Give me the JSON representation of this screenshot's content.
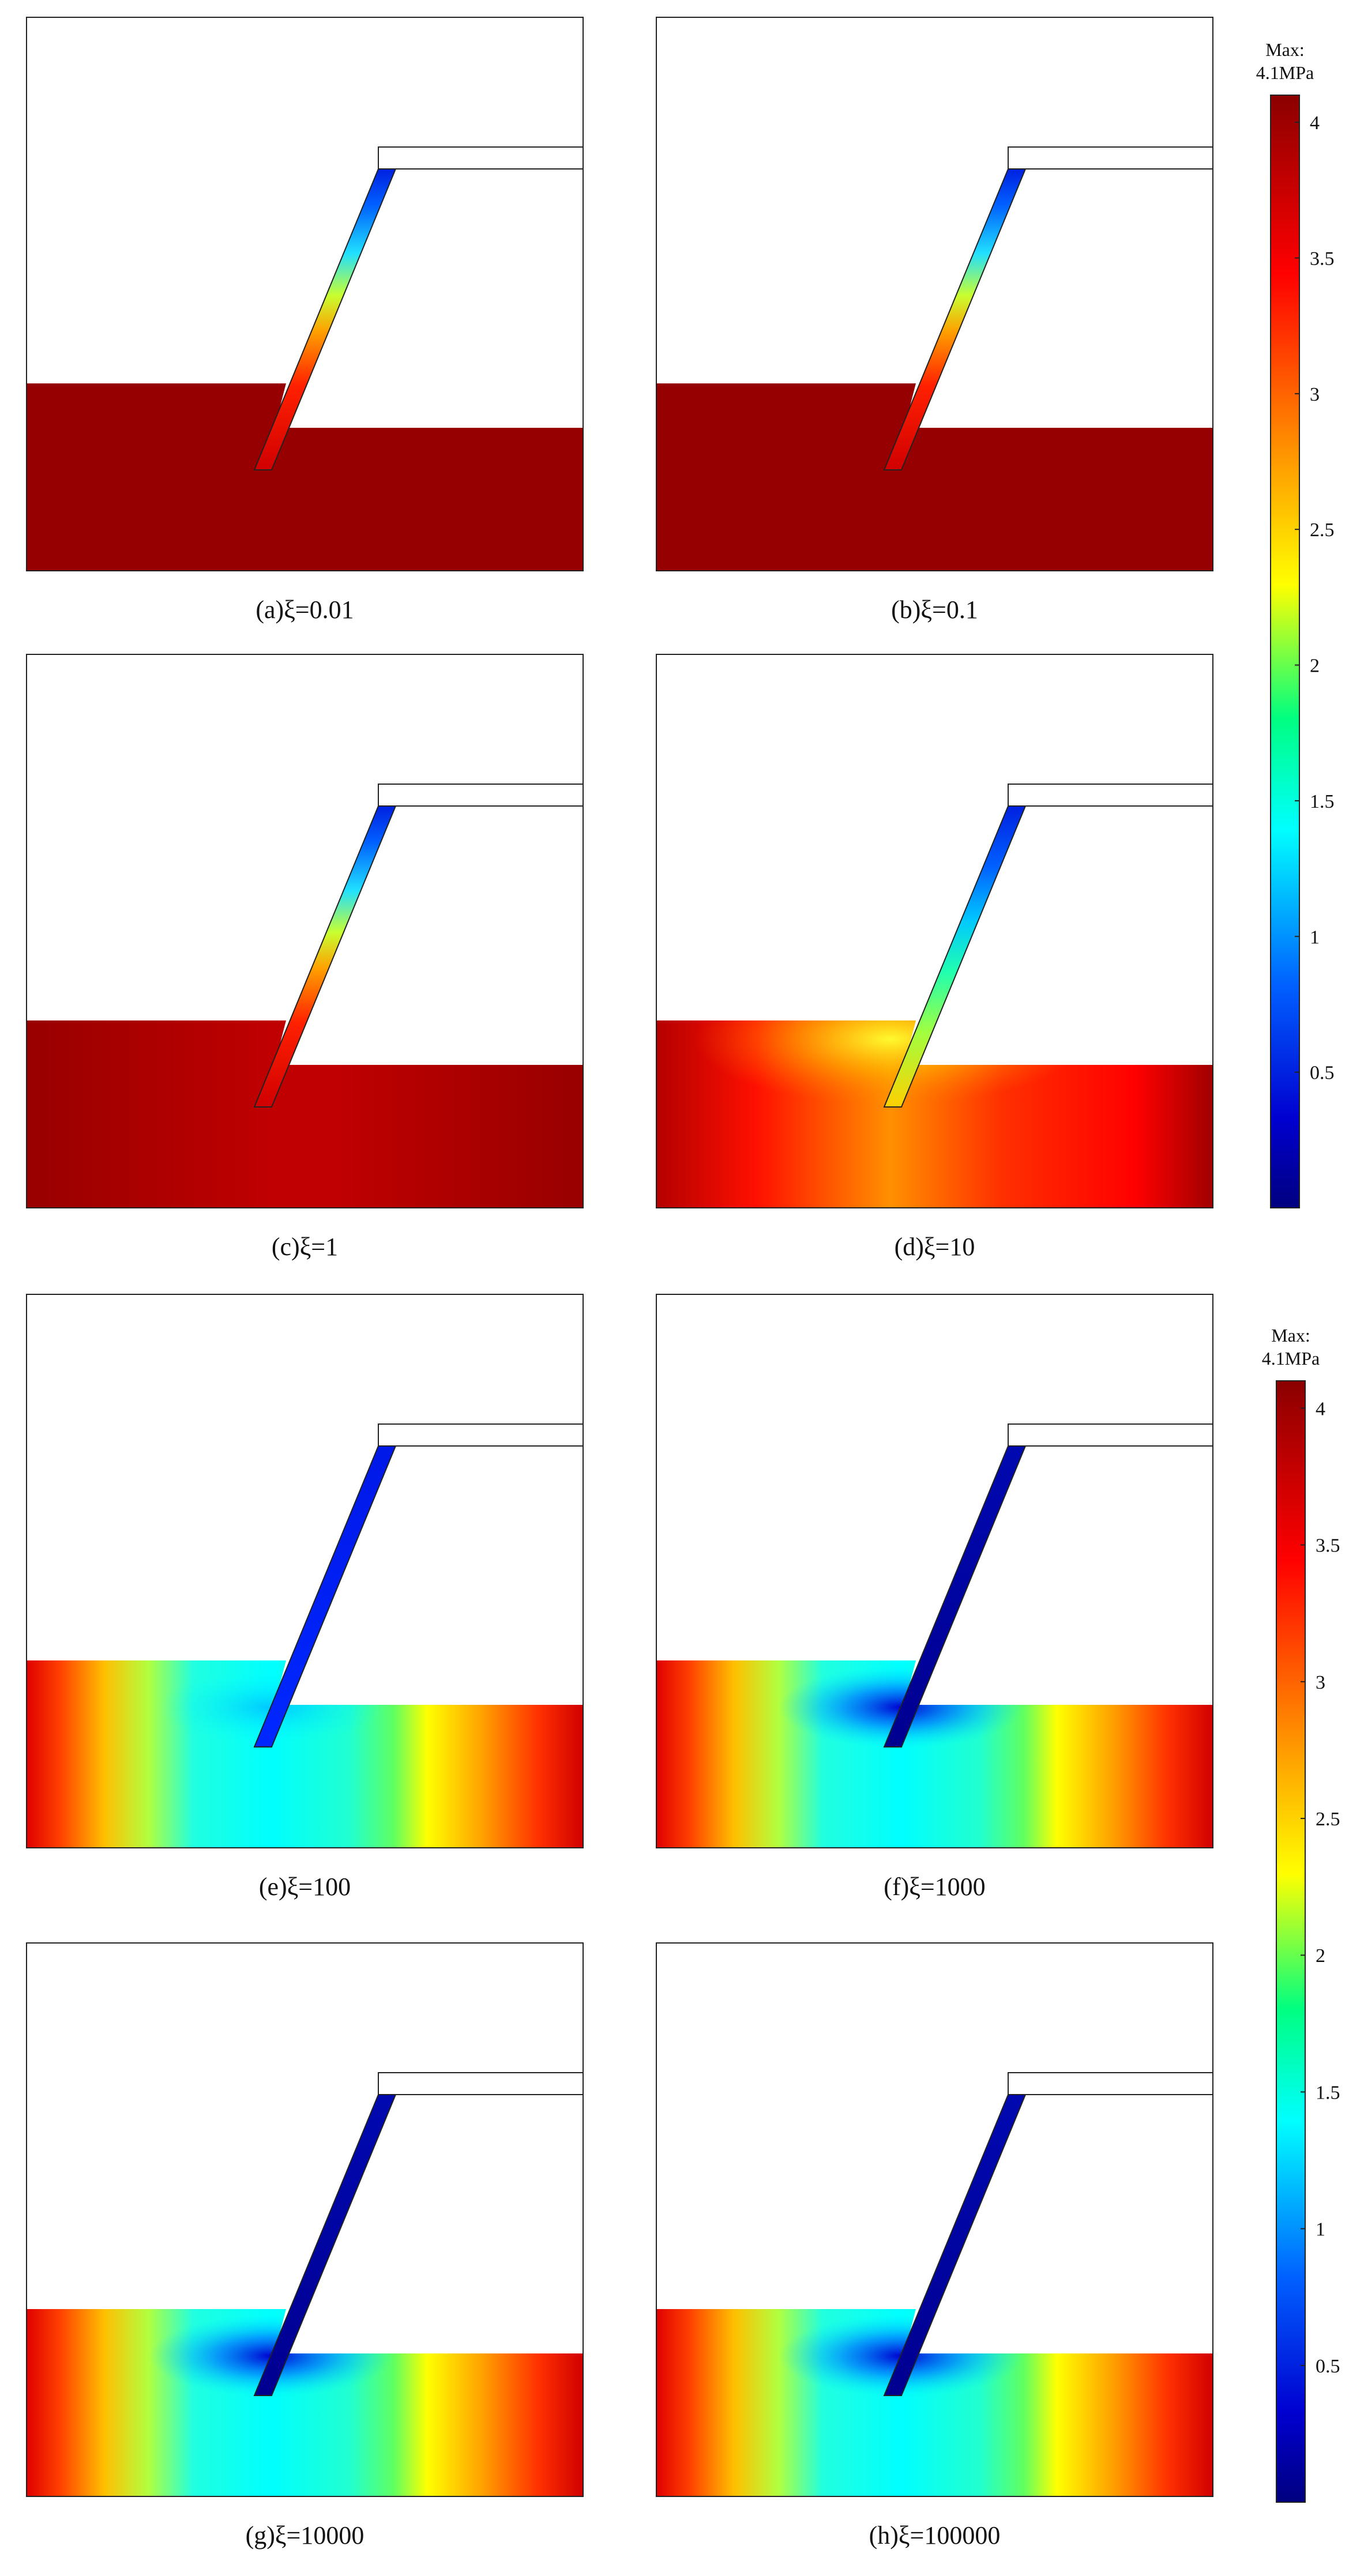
{
  "figure": {
    "panels": [
      {
        "id": "a",
        "caption": "(a)ξ=0.01",
        "xi": 0.01,
        "regime": "uniform",
        "wall": "gradient"
      },
      {
        "id": "b",
        "caption": "(b)ξ=0.1",
        "xi": 0.1,
        "regime": "uniform",
        "wall": "gradient"
      },
      {
        "id": "c",
        "caption": "(c)ξ=1",
        "xi": 1,
        "regime": "soft",
        "wall": "gradient"
      },
      {
        "id": "d",
        "caption": "(d)ξ=10",
        "xi": 10,
        "regime": "mid",
        "wall": "gradient2"
      },
      {
        "id": "e",
        "caption": "(e)ξ=100",
        "xi": 100,
        "regime": "bands",
        "wall": "blue"
      },
      {
        "id": "f",
        "caption": "(f)ξ=1000",
        "xi": 1000,
        "regime": "bands",
        "wall": "darkblue"
      },
      {
        "id": "g",
        "caption": "(g)ξ=10000",
        "xi": 10000,
        "regime": "bands",
        "wall": "darkblue"
      },
      {
        "id": "h",
        "caption": "(h)ξ=100000",
        "xi": 100000,
        "regime": "bands",
        "wall": "darkblue"
      }
    ],
    "colorbars": [
      {
        "max_line1": "Max:",
        "max_line2": "4.1MPa",
        "ticks": [
          "4",
          "3.5",
          "3",
          "2.5",
          "2",
          "1.5",
          "1",
          "0.5"
        ],
        "max_value": 4.1,
        "min_value": 0
      },
      {
        "max_line1": "Max:",
        "max_line2": "4.1MPa",
        "ticks": [
          "4",
          "3.5",
          "3",
          "2.5",
          "2",
          "1.5",
          "1",
          "0.5"
        ],
        "max_value": 4.1,
        "min_value": 0
      }
    ],
    "colormap": [
      "#00007f",
      "#0000ff",
      "#00ffff",
      "#ffff00",
      "#ff0000",
      "#7f0000"
    ]
  }
}
